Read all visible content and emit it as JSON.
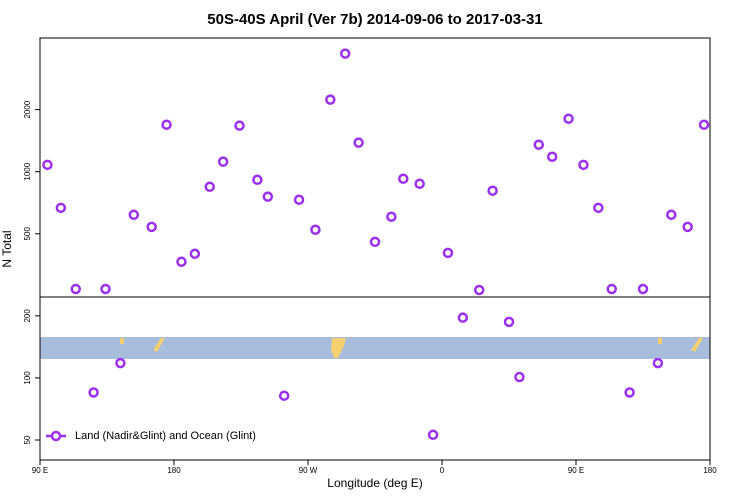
{
  "chart_data": {
    "type": "scatter",
    "title": "50S-40S April (Ver 7b)   2014-09-06 to 2017-03-31",
    "xlabel": "Longitude (deg E)",
    "ylabel": "N Total",
    "log_y": true,
    "legend": "bottom-left",
    "xlim": [
      90,
      540
    ],
    "xticks": [
      {
        "value": 90,
        "label": "90 E"
      },
      180,
      {
        "value": 270,
        "label": "90 W"
      },
      {
        "value": 360,
        "label": "0"
      },
      {
        "value": 450,
        "label": "90 E"
      },
      {
        "value": 540,
        "label": "180"
      }
    ],
    "ylim": [
      40,
      4450
    ],
    "yticks": [
      50,
      100,
      200,
      500,
      1000,
      2000
    ],
    "series": [
      {
        "name": "Land (Nadir&Glint) and Ocean (Glint)",
        "color": "#9b30f0",
        "x": [
          95,
          104,
          114,
          126,
          134,
          144,
          153,
          165,
          175,
          185,
          194,
          204,
          213,
          224,
          236,
          243,
          254,
          264,
          275,
          285,
          295,
          304,
          315,
          326,
          334,
          345,
          354,
          364,
          374,
          385,
          394,
          405,
          412,
          425,
          434,
          445,
          455,
          465,
          474,
          486,
          495,
          505,
          514,
          525,
          536
        ],
        "values": [
          1080,
          668,
          270,
          85,
          270,
          118,
          618,
          540,
          1690,
          366,
          400,
          845,
          1119,
          1672,
          914,
          757,
          82,
          731,
          523,
          2236,
          3740,
          1383,
          457,
          605,
          925,
          874,
          53,
          404,
          196,
          267,
          809,
          187,
          101,
          1352,
          1182,
          1807,
          1080,
          668,
          270,
          85,
          270,
          118,
          618,
          540,
          1690
        ]
      }
    ]
  }
}
